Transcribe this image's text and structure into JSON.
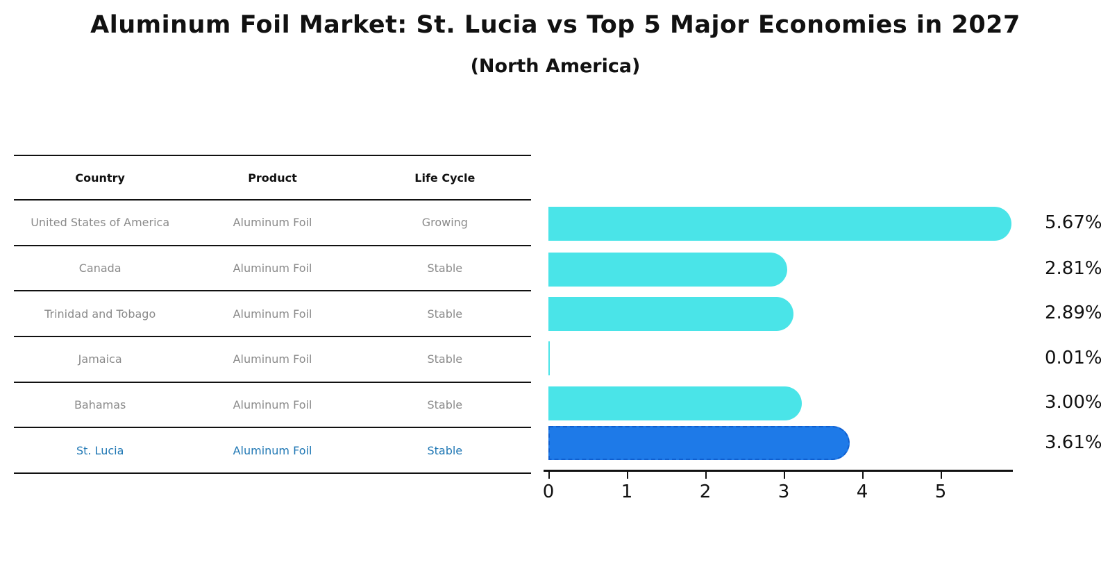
{
  "header": {
    "title": "Aluminum Foil Market: St. Lucia vs Top 5 Major Economies in 2027",
    "subtitle": "(North America)"
  },
  "table": {
    "headers": [
      "Country",
      "Product",
      "Life Cycle"
    ],
    "rows": [
      {
        "country": "United States of America",
        "product": "Aluminum Foil",
        "life_cycle": "Growing",
        "highlighted": false
      },
      {
        "country": "Canada",
        "product": "Aluminum Foil",
        "life_cycle": "Stable",
        "highlighted": false
      },
      {
        "country": "Trinidad and Tobago",
        "product": "Aluminum Foil",
        "life_cycle": "Stable",
        "highlighted": false
      },
      {
        "country": "Jamaica",
        "product": "Aluminum Foil",
        "life_cycle": "Stable",
        "highlighted": false
      },
      {
        "country": "Bahamas",
        "product": "Aluminum Foil",
        "life_cycle": "Stable",
        "highlighted": false
      },
      {
        "country": "St. Lucia",
        "product": "Aluminum Foil",
        "life_cycle": "Stable",
        "highlighted": true
      }
    ]
  },
  "chart_data": {
    "type": "bar",
    "orientation": "horizontal",
    "title": "Aluminum Foil Market: St. Lucia vs Top 5 Major Economies in 2027",
    "subtitle": "(North America)",
    "categories": [
      "United States of America",
      "Canada",
      "Trinidad and Tobago",
      "Jamaica",
      "Bahamas",
      "St. Lucia"
    ],
    "values": [
      5.67,
      2.81,
      2.89,
      0.01,
      3.0,
      3.61
    ],
    "value_labels": [
      "5.67%",
      "2.81%",
      "2.89%",
      "0.01%",
      "3.00%",
      "3.61%"
    ],
    "xlabel": "",
    "ylabel": "",
    "xlim": [
      0,
      6
    ],
    "x_ticks": [
      0,
      1,
      2,
      3,
      4,
      5
    ],
    "grid": false,
    "legend": false,
    "colors": {
      "bar": "#4ae4e8",
      "highlight_fill": "#1e7ae8",
      "highlight_border": "#0f5fd0",
      "highlight_text": "#1f77b4",
      "row_text": "#8a8a8a",
      "axis": "#111111"
    }
  }
}
